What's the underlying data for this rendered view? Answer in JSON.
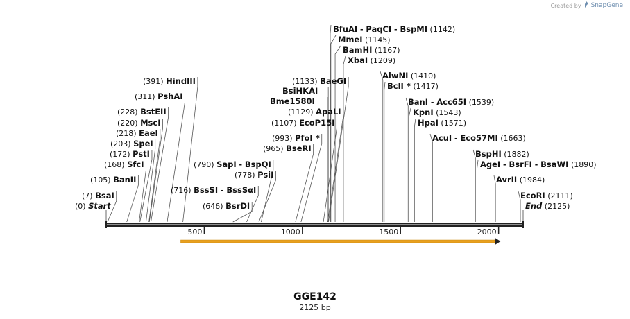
{
  "credit": {
    "prefix": "Created by",
    "brand": "SnapGene"
  },
  "sequence": {
    "name": "GGE142",
    "length_label": "2125 bp",
    "length": 2125
  },
  "axis_ticks": [
    {
      "value": 500,
      "label": "500"
    },
    {
      "value": 1000,
      "label": "1000"
    },
    {
      "value": 1500,
      "label": "1500"
    },
    {
      "value": 2000,
      "label": "2000"
    }
  ],
  "feature": {
    "name": "orf-arrow",
    "start": 380,
    "end": 2010,
    "color": "#e8a020"
  },
  "site_groups": [
    {
      "pos": 0,
      "pos_label": "(0)",
      "names": [
        "Start"
      ],
      "italic": true,
      "side": "right"
    },
    {
      "pos": 7,
      "pos_label": "(7)",
      "names": [
        "BsaI"
      ],
      "side": "right"
    },
    {
      "pos": 105,
      "pos_label": "(105)",
      "names": [
        "BanII"
      ],
      "side": "right"
    },
    {
      "pos": 168,
      "pos_label": "(168)",
      "names": [
        "SfcI"
      ],
      "side": "right"
    },
    {
      "pos": 172,
      "pos_label": "(172)",
      "names": [
        "PstI"
      ],
      "side": "right"
    },
    {
      "pos": 203,
      "pos_label": "(203)",
      "names": [
        "SpeI"
      ],
      "side": "right"
    },
    {
      "pos": 218,
      "pos_label": "(218)",
      "names": [
        "EaeI"
      ],
      "side": "right"
    },
    {
      "pos": 220,
      "pos_label": "(220)",
      "names": [
        "MscI"
      ],
      "side": "right"
    },
    {
      "pos": 228,
      "pos_label": "(228)",
      "names": [
        "BstEII"
      ],
      "side": "right"
    },
    {
      "pos": 311,
      "pos_label": "(311)",
      "names": [
        "PshAI"
      ],
      "side": "right"
    },
    {
      "pos": 391,
      "pos_label": "(391)",
      "names": [
        "HindIII"
      ],
      "side": "right"
    },
    {
      "pos": 646,
      "pos_label": "(646)",
      "names": [
        "BsrDI"
      ],
      "side": "right"
    },
    {
      "pos": 716,
      "pos_label": "(716)",
      "names": [
        "BssSI",
        "BssSαI"
      ],
      "side": "right"
    },
    {
      "pos": 778,
      "pos_label": "(778)",
      "names": [
        "PsiI"
      ],
      "side": "right"
    },
    {
      "pos": 790,
      "pos_label": "(790)",
      "names": [
        "SapI",
        "BspQI"
      ],
      "side": "right"
    },
    {
      "pos": 965,
      "pos_label": "(965)",
      "names": [
        "BseRI"
      ],
      "side": "right"
    },
    {
      "pos": 993,
      "pos_label": "(993)",
      "names": [
        "PfoI *"
      ],
      "side": "right"
    },
    {
      "pos": 1107,
      "pos_label": "(1107)",
      "names": [
        "EcoP15I"
      ],
      "side": "right"
    },
    {
      "pos": 1129,
      "pos_label": "(1129)",
      "names": [
        "ApaLI"
      ],
      "side": "right"
    },
    {
      "pos": 1131,
      "pos_label": "",
      "names": [
        "Bme1580I"
      ],
      "side": "right"
    },
    {
      "pos": 1132,
      "pos_label": "",
      "names": [
        "BsiHKAI"
      ],
      "side": "right"
    },
    {
      "pos": 1133,
      "pos_label": "(1133)",
      "names": [
        "BaeGI"
      ],
      "side": "right"
    },
    {
      "pos": 1142,
      "pos_label": "(1142)",
      "names": [
        "BfuAI",
        "PaqCI",
        "BspMI"
      ],
      "side": "left"
    },
    {
      "pos": 1145,
      "pos_label": "(1145)",
      "names": [
        "MmeI"
      ],
      "side": "left"
    },
    {
      "pos": 1167,
      "pos_label": "(1167)",
      "names": [
        "BamHI"
      ],
      "side": "left"
    },
    {
      "pos": 1209,
      "pos_label": "(1209)",
      "names": [
        "XbaI"
      ],
      "side": "left"
    },
    {
      "pos": 1410,
      "pos_label": "(1410)",
      "names": [
        "AlwNI"
      ],
      "side": "left"
    },
    {
      "pos": 1417,
      "pos_label": "(1417)",
      "names": [
        "BclI *"
      ],
      "side": "left"
    },
    {
      "pos": 1539,
      "pos_label": "(1539)",
      "names": [
        "BanI",
        "Acc65I"
      ],
      "side": "left"
    },
    {
      "pos": 1543,
      "pos_label": "(1543)",
      "names": [
        "KpnI"
      ],
      "side": "left"
    },
    {
      "pos": 1571,
      "pos_label": "(1571)",
      "names": [
        "HpaI"
      ],
      "side": "left"
    },
    {
      "pos": 1663,
      "pos_label": "(1663)",
      "names": [
        "AcuI",
        "Eco57MI"
      ],
      "side": "left"
    },
    {
      "pos": 1882,
      "pos_label": "(1882)",
      "names": [
        "BspHI"
      ],
      "side": "left"
    },
    {
      "pos": 1890,
      "pos_label": "(1890)",
      "names": [
        "AgeI",
        "BsrFI",
        "BsaWI"
      ],
      "side": "left"
    },
    {
      "pos": 1984,
      "pos_label": "(1984)",
      "names": [
        "AvrII"
      ],
      "side": "left"
    },
    {
      "pos": 2111,
      "pos_label": "(2111)",
      "names": [
        "EcoRI"
      ],
      "side": "left"
    },
    {
      "pos": 2125,
      "pos_label": "(2125)",
      "names": [
        "End"
      ],
      "italic": true,
      "side": "left"
    }
  ]
}
